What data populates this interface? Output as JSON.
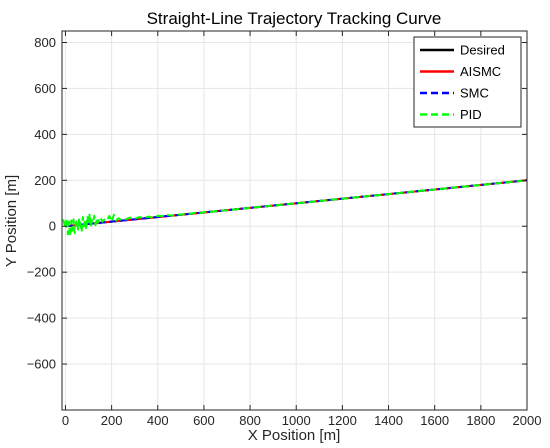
{
  "chart_data": {
    "type": "line",
    "title": "Straight-Line Trajectory Tracking Curve",
    "xlabel": "X Position [m]",
    "ylabel": "Y Position [m]",
    "xlim": [
      -15,
      2000
    ],
    "ylim": [
      -800,
      850
    ],
    "xticks": [
      0,
      200,
      400,
      600,
      800,
      1000,
      1200,
      1400,
      1600,
      1800,
      2000
    ],
    "yticks": [
      -600,
      -400,
      -200,
      0,
      200,
      400,
      600,
      800
    ],
    "grid": true,
    "legend_position": "top-right",
    "series": [
      {
        "name": "Desired",
        "color": "#000000",
        "dash": "solid",
        "x": [
          0,
          2000
        ],
        "y": [
          0,
          200
        ]
      },
      {
        "name": "AISMC",
        "color": "#ff0000",
        "dash": "solid",
        "x": [
          0,
          2000
        ],
        "y": [
          0,
          200
        ]
      },
      {
        "name": "SMC",
        "color": "#0000ff",
        "dash": "dashed",
        "x": [
          0,
          2000
        ],
        "y": [
          0,
          200
        ]
      },
      {
        "name": "PID",
        "color": "#00ff00",
        "dash": "dashed",
        "x": [
          -10,
          0,
          5,
          10,
          15,
          20,
          25,
          30,
          35,
          40,
          45,
          50,
          55,
          60,
          65,
          70,
          75,
          80,
          85,
          90,
          95,
          100,
          105,
          110,
          115,
          120,
          125,
          130,
          135,
          140,
          150,
          160,
          170,
          180,
          190,
          200,
          210,
          220,
          230,
          240,
          260,
          280,
          300,
          320,
          340,
          360,
          380,
          400,
          420,
          440,
          460,
          480,
          500,
          520,
          540,
          560,
          580,
          600,
          620,
          650,
          700,
          750,
          800,
          850,
          900,
          1000,
          1200,
          1400,
          1600,
          1800,
          2000
        ],
        "y": [
          30,
          -10,
          35,
          -35,
          20,
          -45,
          25,
          -20,
          30,
          -30,
          10,
          28,
          -15,
          35,
          5,
          -25,
          40,
          0,
          30,
          -15,
          45,
          10,
          55,
          -5,
          30,
          20,
          45,
          5,
          35,
          15,
          40,
          20,
          30,
          25,
          45,
          20,
          50,
          25,
          35,
          28,
          30,
          38,
          32,
          40,
          36,
          42,
          38,
          45,
          44,
          50,
          46,
          52,
          50,
          55,
          54,
          58,
          56,
          62,
          60,
          66,
          70,
          75,
          80,
          85,
          90,
          100,
          120,
          140,
          160,
          180,
          200
        ]
      }
    ]
  }
}
